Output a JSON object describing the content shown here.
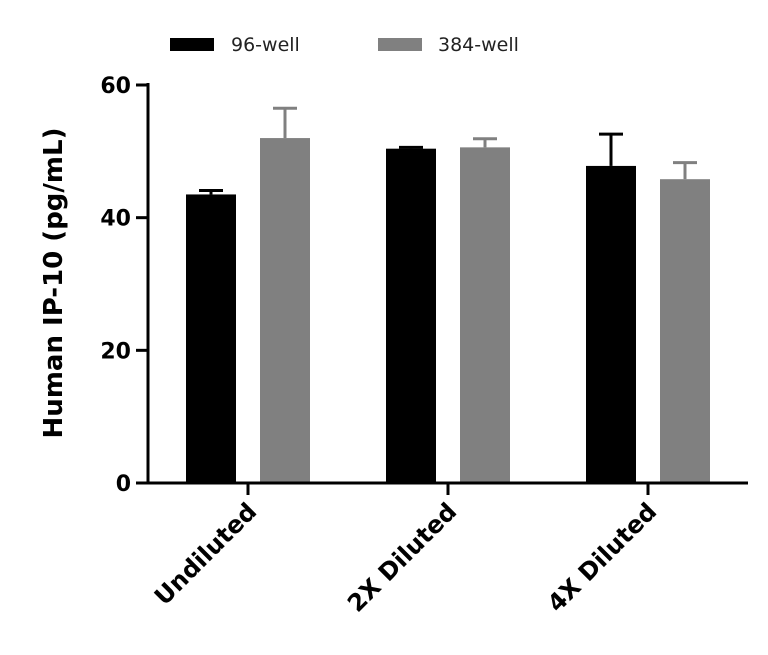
{
  "chart_data": {
    "type": "bar",
    "title": "",
    "xlabel": "",
    "ylabel": "Human IP-10 (pg/mL)",
    "ylim": [
      0,
      60
    ],
    "yticks": [
      0,
      20,
      40,
      60
    ],
    "categories": [
      "Undiluted",
      "2X Diluted",
      "4X Diluted"
    ],
    "series": [
      {
        "name": "96-well",
        "color": "#000000",
        "values": [
          43.5,
          50.4,
          47.8
        ],
        "errors": [
          0.6,
          0.2,
          4.8
        ]
      },
      {
        "name": "384-well",
        "color": "#808080",
        "values": [
          52.0,
          50.6,
          45.8
        ],
        "errors": [
          4.5,
          1.3,
          2.5
        ]
      }
    ],
    "legend_position": "top",
    "grid": false
  }
}
